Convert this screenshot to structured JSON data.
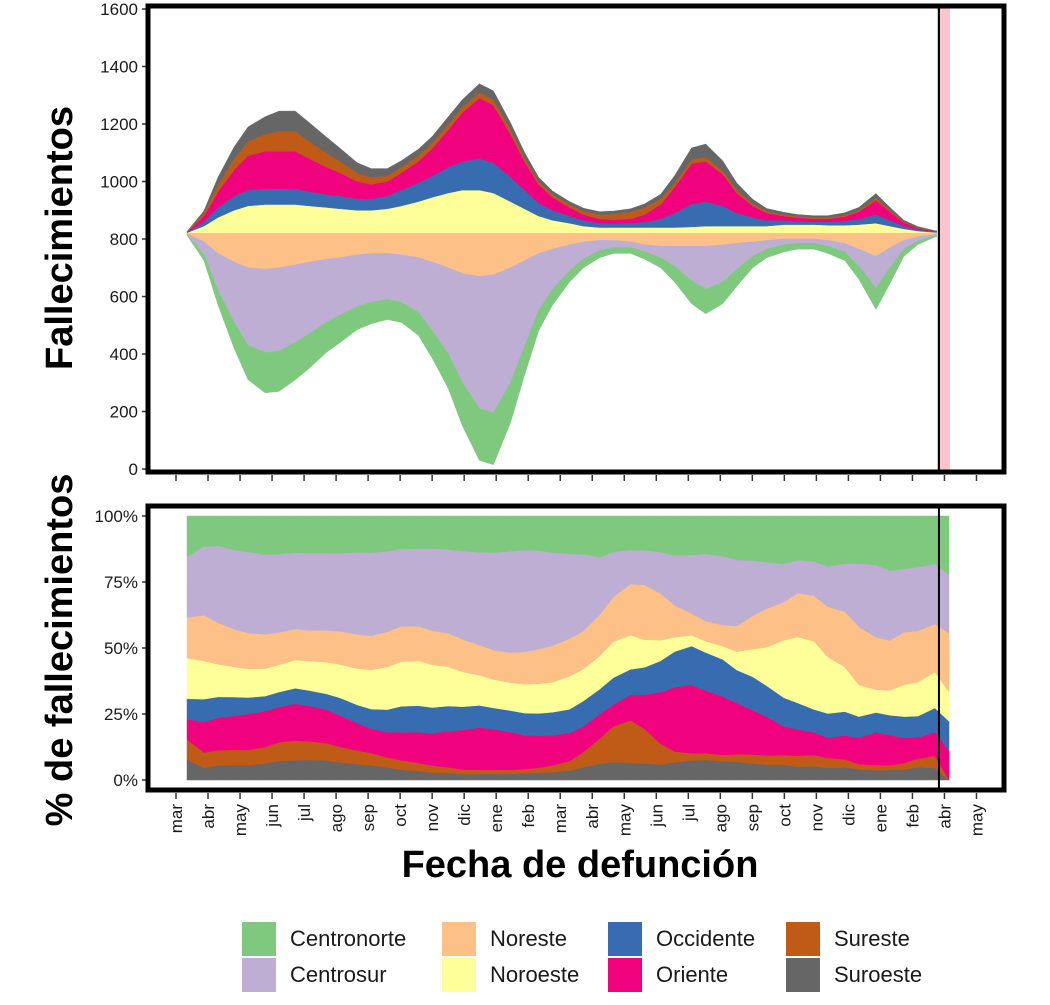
{
  "chart_data": [
    {
      "type": "area",
      "subtype": "streamgraph",
      "ylabel": "Fallecimientos",
      "ylim": [
        0,
        1600
      ],
      "yticks": [
        "0",
        "200",
        "400",
        "600",
        "800",
        "1000",
        "1200",
        "1400",
        "1600"
      ],
      "baseline": 820,
      "shaded_region_color": "#f9c6cf",
      "x": [
        "2020-03-15",
        "2020-04-01",
        "2020-04-15",
        "2020-05-01",
        "2020-05-15",
        "2020-06-01",
        "2020-06-15",
        "2020-07-01",
        "2020-07-15",
        "2020-08-01",
        "2020-08-15",
        "2020-09-01",
        "2020-09-15",
        "2020-10-01",
        "2020-10-15",
        "2020-11-01",
        "2020-11-15",
        "2020-12-01",
        "2020-12-15",
        "2021-01-01",
        "2021-01-15",
        "2021-02-01",
        "2021-02-15",
        "2021-03-01",
        "2021-03-15",
        "2021-04-01",
        "2021-04-15",
        "2021-05-01",
        "2021-05-15",
        "2021-06-01",
        "2021-06-15",
        "2021-07-01",
        "2021-07-15",
        "2021-08-01",
        "2021-08-15",
        "2021-09-01",
        "2021-09-15",
        "2021-10-01",
        "2021-10-15",
        "2021-11-01",
        "2021-11-15",
        "2021-12-01",
        "2021-12-15",
        "2022-01-01",
        "2022-01-15",
        "2022-02-01",
        "2022-02-15",
        "2022-03-01",
        "2022-03-15",
        "2022-04-01",
        "2022-04-15"
      ],
      "series": [
        {
          "name": "Centronorte",
          "values": [
            2,
            20,
            50,
            90,
            120,
            140,
            140,
            130,
            120,
            105,
            95,
            80,
            75,
            70,
            70,
            80,
            95,
            120,
            150,
            180,
            180,
            140,
            100,
            70,
            55,
            40,
            30,
            25,
            20,
            20,
            25,
            35,
            55,
            80,
            85,
            75,
            60,
            40,
            30,
            25,
            20,
            20,
            25,
            30,
            45,
            75,
            55,
            25,
            12,
            4,
            2
          ]
        },
        {
          "name": "Centrosur",
          "values": [
            3,
            45,
            130,
            210,
            270,
            290,
            290,
            270,
            250,
            220,
            200,
            180,
            170,
            160,
            165,
            190,
            240,
            300,
            380,
            460,
            480,
            400,
            300,
            200,
            140,
            90,
            60,
            35,
            25,
            20,
            25,
            40,
            70,
            120,
            150,
            130,
            90,
            50,
            30,
            20,
            15,
            15,
            20,
            30,
            60,
            110,
            70,
            30,
            15,
            5,
            2
          ]
        },
        {
          "name": "Noreste",
          "values": [
            2,
            30,
            70,
            100,
            120,
            125,
            120,
            110,
            100,
            90,
            85,
            75,
            70,
            70,
            75,
            85,
            100,
            120,
            140,
            150,
            145,
            120,
            95,
            70,
            55,
            40,
            30,
            25,
            25,
            30,
            40,
            45,
            45,
            45,
            45,
            40,
            35,
            30,
            25,
            20,
            20,
            20,
            25,
            35,
            55,
            80,
            50,
            25,
            12,
            4,
            2
          ]
        },
        {
          "name": "Noroeste",
          "values": [
            2,
            25,
            55,
            80,
            95,
            100,
            100,
            100,
            95,
            90,
            85,
            80,
            80,
            85,
            95,
            110,
            125,
            140,
            150,
            150,
            140,
            110,
            85,
            60,
            45,
            35,
            25,
            20,
            20,
            20,
            20,
            20,
            20,
            22,
            25,
            25,
            25,
            25,
            25,
            30,
            30,
            30,
            28,
            28,
            30,
            35,
            25,
            15,
            8,
            3,
            1
          ]
        },
        {
          "name": "Occidente",
          "values": [
            1,
            15,
            35,
            50,
            55,
            55,
            55,
            55,
            50,
            45,
            45,
            40,
            40,
            45,
            55,
            65,
            75,
            90,
            100,
            110,
            105,
            85,
            65,
            45,
            35,
            25,
            20,
            15,
            15,
            15,
            20,
            30,
            50,
            80,
            85,
            70,
            45,
            30,
            20,
            15,
            12,
            10,
            12,
            15,
            20,
            30,
            20,
            10,
            5,
            2,
            1
          ]
        },
        {
          "name": "Oriente",
          "values": [
            1,
            20,
            55,
            90,
            120,
            130,
            130,
            130,
            115,
            95,
            80,
            60,
            50,
            50,
            60,
            75,
            95,
            130,
            170,
            210,
            200,
            150,
            100,
            65,
            45,
            30,
            20,
            15,
            12,
            15,
            25,
            50,
            90,
            140,
            140,
            110,
            70,
            40,
            25,
            15,
            12,
            10,
            10,
            15,
            25,
            50,
            30,
            12,
            5,
            2,
            1
          ]
        },
        {
          "name": "Sureste",
          "values": [
            1,
            10,
            25,
            40,
            50,
            60,
            70,
            70,
            60,
            50,
            40,
            30,
            25,
            20,
            20,
            20,
            20,
            20,
            20,
            20,
            20,
            15,
            12,
            10,
            10,
            10,
            12,
            15,
            20,
            25,
            25,
            20,
            15,
            15,
            15,
            12,
            10,
            8,
            6,
            5,
            5,
            5,
            5,
            5,
            5,
            8,
            5,
            3,
            2,
            1,
            0
          ]
        },
        {
          "name": "Suroeste",
          "values": [
            1,
            8,
            25,
            40,
            50,
            60,
            70,
            70,
            65,
            55,
            45,
            35,
            30,
            25,
            22,
            22,
            22,
            25,
            25,
            30,
            30,
            25,
            20,
            15,
            12,
            10,
            10,
            10,
            10,
            10,
            12,
            15,
            25,
            40,
            45,
            35,
            25,
            15,
            10,
            8,
            6,
            6,
            6,
            8,
            10,
            15,
            10,
            5,
            3,
            1,
            0
          ]
        }
      ]
    },
    {
      "type": "area",
      "subtype": "stacked-percent",
      "ylabel": "% de fallecimientos",
      "ylim": [
        0,
        100
      ],
      "yticks": [
        "0%",
        "25%",
        "50%",
        "75%",
        "100%"
      ],
      "xlabel": "Fecha de defunción",
      "xticks": [
        "mar",
        "abr",
        "may",
        "jun",
        "jul",
        "ago",
        "sep",
        "oct",
        "nov",
        "dic",
        "ene",
        "feb",
        "mar",
        "abr",
        "may",
        "jun",
        "jul",
        "ago",
        "sep",
        "oct",
        "nov",
        "dic",
        "ene",
        "feb",
        "abr",
        "may"
      ],
      "vline_date": "2022-04-05"
    }
  ],
  "legend": {
    "items": [
      {
        "label": "Centronorte",
        "color": "#7fc97f"
      },
      {
        "label": "Noreste",
        "color": "#fdc086"
      },
      {
        "label": "Occidente",
        "color": "#386cb0"
      },
      {
        "label": "Sureste",
        "color": "#bf5b17"
      },
      {
        "label": "Centrosur",
        "color": "#beaed4"
      },
      {
        "label": "Noroeste",
        "color": "#ffff99"
      },
      {
        "label": "Oriente",
        "color": "#f0027f"
      },
      {
        "label": "Suroeste",
        "color": "#666666"
      }
    ]
  }
}
